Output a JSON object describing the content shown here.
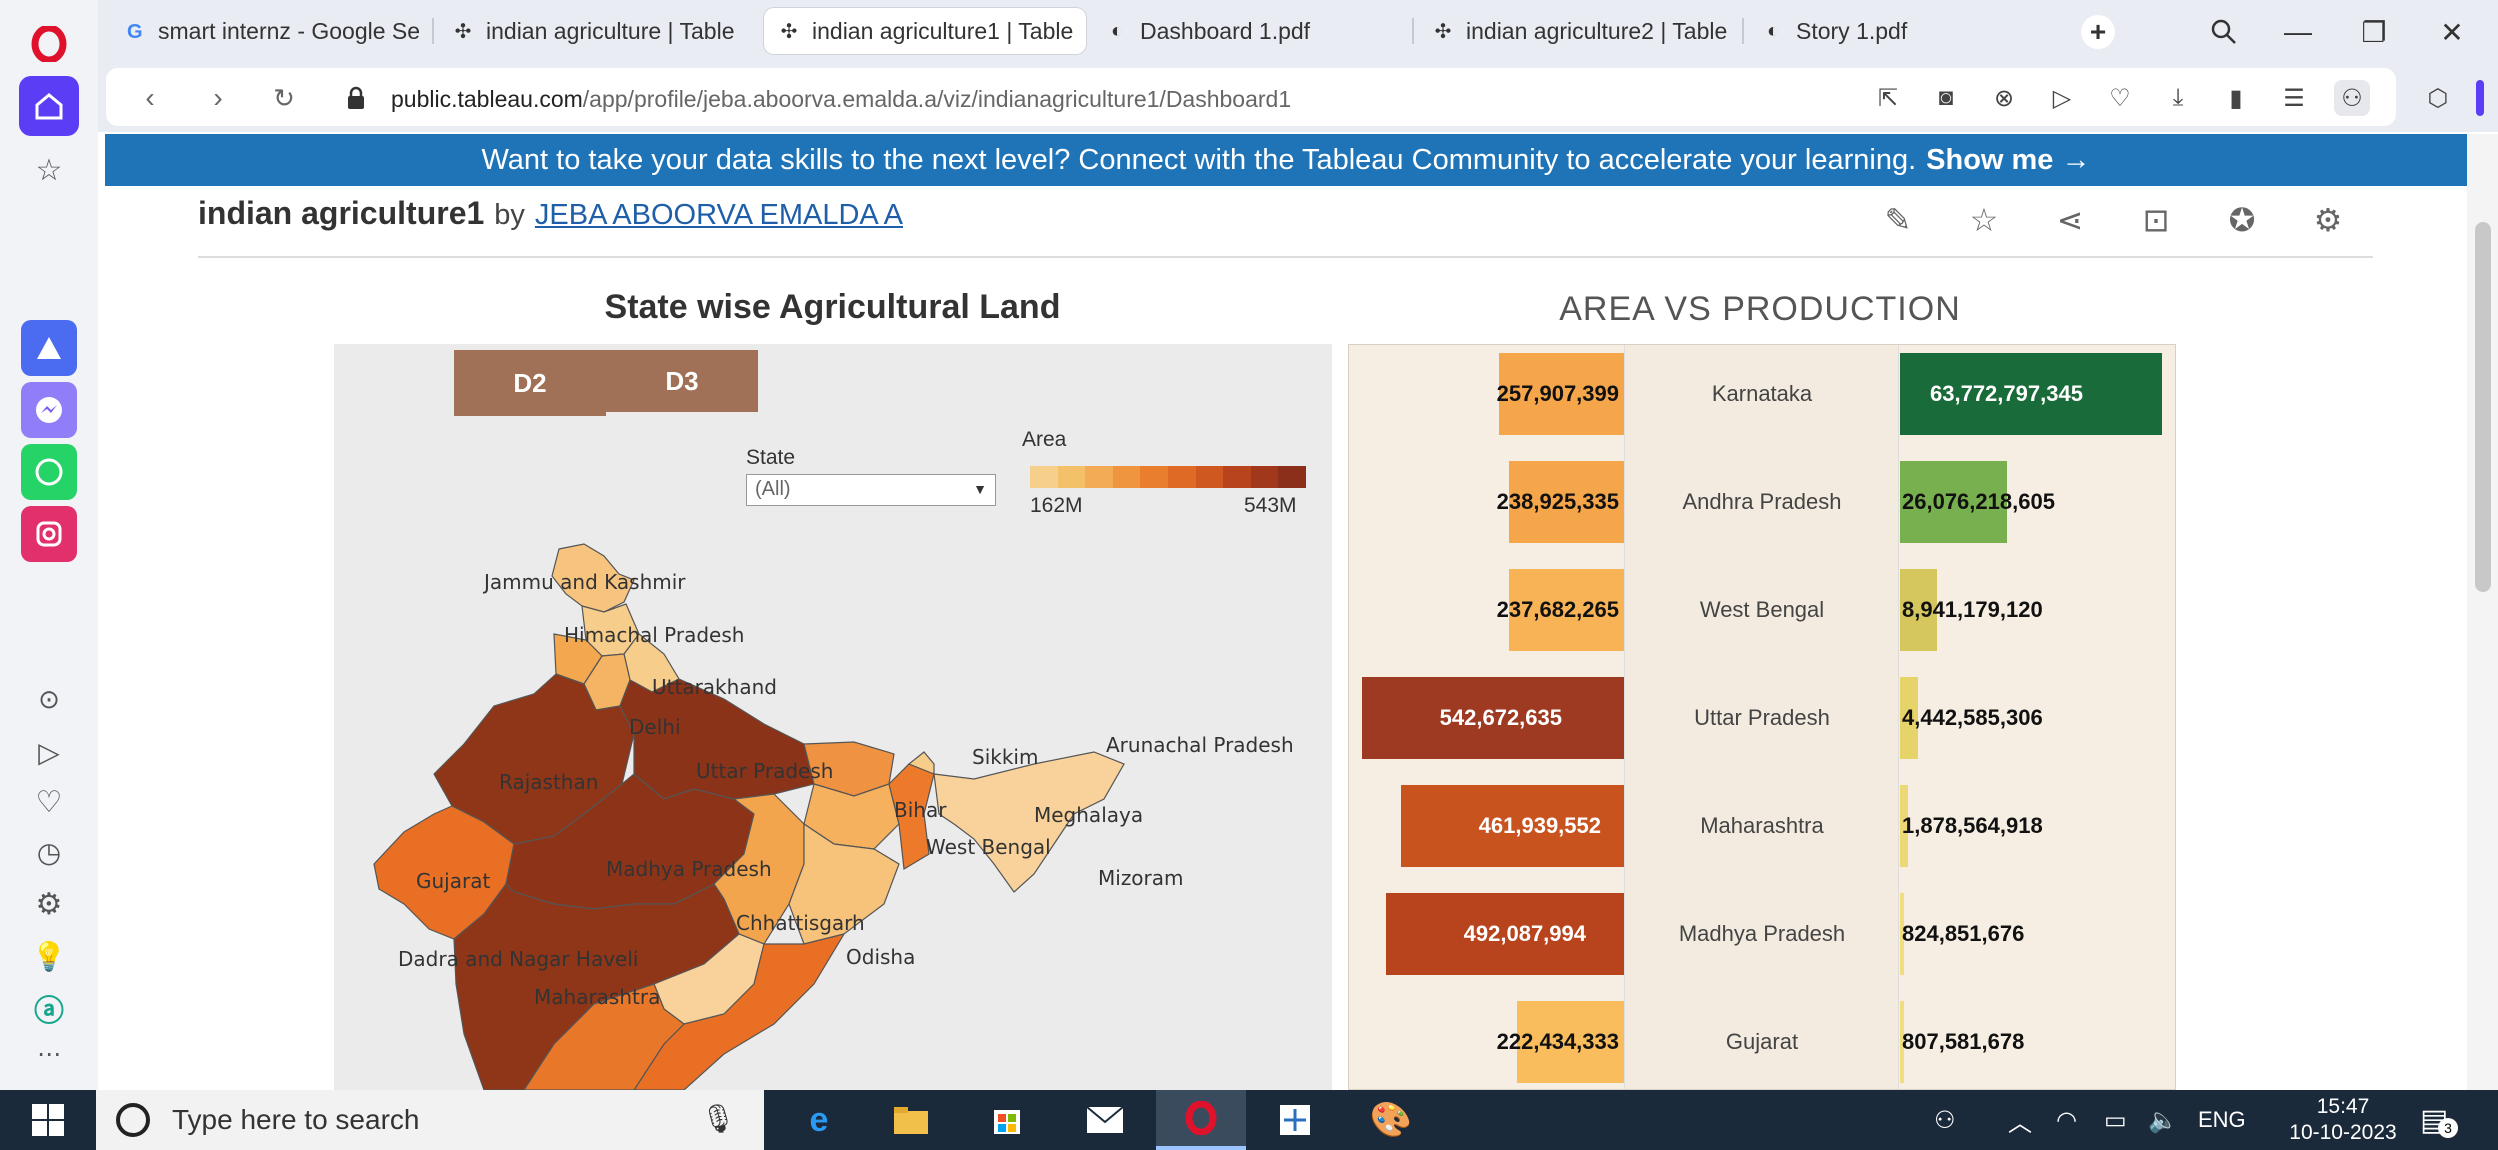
{
  "browser": {
    "tabs": [
      {
        "label": "smart internz - Google Se",
        "icon": "google-icon",
        "active": false
      },
      {
        "label": "indian agriculture | Table",
        "icon": "tableau-icon",
        "active": false
      },
      {
        "label": "indian agriculture1 | Table",
        "icon": "tableau-icon",
        "active": true
      },
      {
        "label": "Dashboard 1.pdf",
        "icon": "globe-icon",
        "active": false
      },
      {
        "label": "indian agriculture2 | Table",
        "icon": "tableau-icon",
        "active": false
      },
      {
        "label": "Story 1.pdf",
        "icon": "globe-icon",
        "active": false
      }
    ],
    "new_tab_symbol": "+",
    "url_host": "public.tableau.com",
    "url_path": "/app/profile/jeba.aboorva.emalda.a/viz/indianagriculture1/Dashboard1"
  },
  "banner": {
    "text": "Want to take your data skills to the next level? Connect with the Tableau Community to accelerate your learning.",
    "link": "Show me →"
  },
  "viz": {
    "title": "indian agriculture1",
    "by": "by",
    "author": "JEBA ABOORVA EMALDA A"
  },
  "map": {
    "title": "State wise Agricultural Land",
    "buttons": [
      "D2",
      "D3"
    ],
    "filter_label": "State",
    "filter_value": "(All)",
    "legend_title": "Area",
    "legend_min": "162M",
    "legend_max": "543M",
    "legend_colors": [
      "#f6d08a",
      "#f5c06a",
      "#f3ac55",
      "#ef9540",
      "#e97e2e",
      "#de6a25",
      "#cf5720",
      "#b8441e",
      "#a1381c",
      "#8b2e1a"
    ],
    "state_labels": [
      "Jammu and Kashmir",
      "Himachal Pradesh",
      "Uttarakhand",
      "Delhi",
      "Rajasthan",
      "Uttar Pradesh",
      "Bihar",
      "Sikkim",
      "Arunachal Pradesh",
      "Meghalaya",
      "West Bengal",
      "Mizoram",
      "Gujarat",
      "Madhya Pradesh",
      "Chhattisgarh",
      "Odisha",
      "Dadra and Nagar Haveli",
      "Maharashtra"
    ]
  },
  "chart_data": {
    "type": "bar",
    "title": "AREA VS PRODUCTION",
    "categories": [
      "Karnataka",
      "Andhra Pradesh",
      "West Bengal",
      "Uttar Pradesh",
      "Maharashtra",
      "Madhya Pradesh",
      "Gujarat"
    ],
    "series": [
      {
        "name": "Area",
        "values": [
          257907399,
          238925335,
          237682265,
          542672635,
          461939552,
          492087994,
          222434333
        ],
        "labels": [
          "257,907,399",
          "238,925,335",
          "237,682,265",
          "542,672,635",
          "461,939,552",
          "492,087,994",
          "222,434,333"
        ],
        "colors": [
          "#f5a54a",
          "#f5a54a",
          "#f7b355",
          "#9e3a22",
          "#c9531f",
          "#b8441e",
          "#f9bd5e"
        ]
      },
      {
        "name": "Production",
        "values": [
          63772797345,
          26076218605,
          8941179120,
          4442585306,
          1878564918,
          824851676,
          807581678
        ],
        "labels": [
          "63,772,797,345",
          "26,076,218,605",
          "8,941,179,120",
          "4,442,585,306",
          "1,878,564,918",
          "824,851,676",
          "807,581,678"
        ],
        "colors": [
          "#1a6b3a",
          "#79b04f",
          "#d6c65e",
          "#e6d36a",
          "#ecd976",
          "#efdd80",
          "#efdd80"
        ]
      }
    ]
  },
  "taskbar": {
    "search_placeholder": "Type here to search",
    "lang": "ENG",
    "time": "15:47",
    "date": "10-10-2023",
    "notification_count": "3"
  }
}
